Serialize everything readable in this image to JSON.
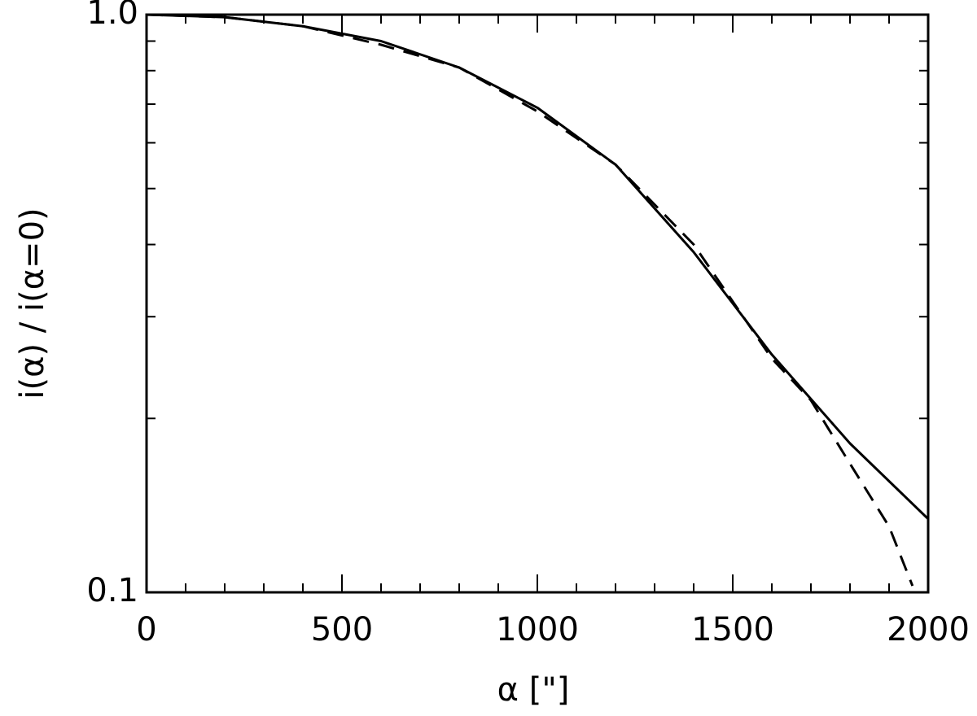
{
  "chart_data": {
    "type": "line",
    "xlabel": "α [\"]",
    "ylabel": "i(α) / i(α=0)",
    "xlim": [
      0,
      2000
    ],
    "xticks": [
      0,
      500,
      1000,
      1500,
      2000
    ],
    "xminorticks": [
      100,
      200,
      300,
      400,
      600,
      700,
      800,
      900,
      1100,
      1200,
      1300,
      1400,
      1600,
      1700,
      1800,
      1900
    ],
    "ylim": [
      0.1,
      1
    ],
    "yscale": "log",
    "yticks": [
      {
        "value": 0.1,
        "label": "0.1"
      },
      {
        "value": 1,
        "label": "1.0"
      }
    ],
    "yminorticks": [
      0.2,
      0.3,
      0.4,
      0.5,
      0.6,
      0.7,
      0.8,
      0.9
    ],
    "series": [
      {
        "color": "#000000",
        "style": "solid",
        "x": [
          0,
          200,
          400,
          600,
          800,
          1000,
          1200,
          1400,
          1600,
          1800,
          2000
        ],
        "values": [
          1.0,
          0.99,
          0.955,
          0.9,
          0.81,
          0.69,
          0.55,
          0.388,
          0.258,
          0.181,
          0.134
        ]
      },
      {
        "color": "#000000",
        "style": "dashed",
        "x": [
          0,
          200,
          400,
          600,
          800,
          1000,
          1200,
          1400,
          1600,
          1700,
          1800,
          1900,
          1960
        ],
        "values": [
          1.0,
          0.99,
          0.955,
          0.887,
          0.81,
          0.68,
          0.55,
          0.4,
          0.254,
          0.215,
          0.167,
          0.13,
          0.1026
        ]
      }
    ]
  }
}
